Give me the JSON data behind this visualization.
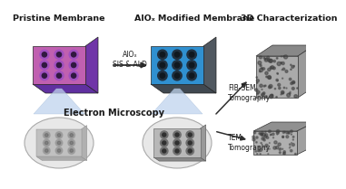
{
  "bg_color": "#ffffff",
  "title_pristine": "Pristine Membrane",
  "title_alo": "AlOₓ Modified Membrane",
  "title_em": "Electron Microscopy",
  "title_3d": "3D Characterization",
  "label_arrow": "AlOₓ\nSIS & ALD",
  "label_fibsem": "FIB-SEM\nTomography",
  "label_tem": "TEM\nTomography",
  "pristine_top": "#c060b0",
  "pristine_side_dark": "#6030a0",
  "pristine_side_right": "#7035a8",
  "pristine_hole_outer": "#a050c0",
  "pristine_hole_inner": "#301840",
  "alo_top": "#3090d0",
  "alo_side_dark": "#404850",
  "alo_side_right": "#505860",
  "alo_hole_outer": "#203040",
  "alo_hole_inner": "#101820",
  "arrow_color": "#303030",
  "beam_color": "#c0d4ee",
  "text_color": "#1a1a1a",
  "cube_front": "#aaaaaa",
  "cube_top": "#888888",
  "cube_right": "#999999",
  "slab_front": "#b0b0b0",
  "slab_top": "#909090",
  "slab_right": "#a0a0a0"
}
